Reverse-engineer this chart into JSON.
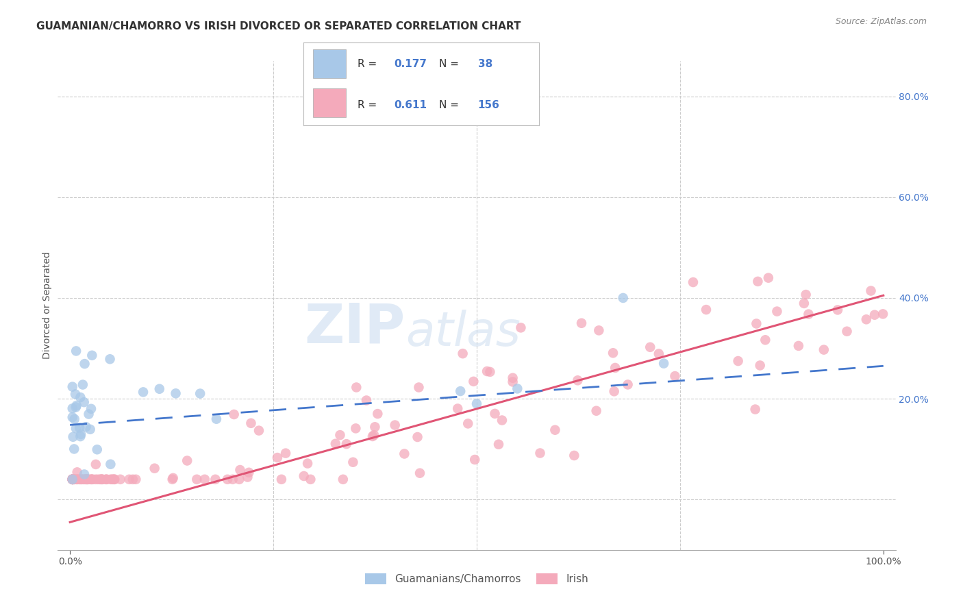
{
  "title": "GUAMANIAN/CHAMORRO VS IRISH DIVORCED OR SEPARATED CORRELATION CHART",
  "source": "Source: ZipAtlas.com",
  "ylabel": "Divorced or Separated",
  "watermark_zip": "ZIP",
  "watermark_atlas": "atlas",
  "legend_label1": "Guamanians/Chamorros",
  "legend_label2": "Irish",
  "blue_scatter_color": "#a8c8e8",
  "pink_scatter_color": "#f4aabb",
  "line_blue_color": "#4477cc",
  "line_pink_color": "#e05575",
  "grid_color": "#cccccc",
  "background": "#ffffff",
  "title_color": "#333333",
  "source_color": "#888888",
  "ylabel_color": "#555555",
  "tick_color_x": "#555555",
  "tick_color_y": "#4477cc",
  "legend_text_color": "#333333",
  "legend_value_color": "#4477cc",
  "blue_trend_x0": 0.0,
  "blue_trend_x1": 1.0,
  "blue_trend_y0": 0.148,
  "blue_trend_y1": 0.265,
  "pink_trend_x0": 0.0,
  "pink_trend_x1": 1.0,
  "pink_trend_y0": -0.045,
  "pink_trend_y1": 0.405,
  "xlim_min": -0.015,
  "xlim_max": 1.015,
  "ylim_min": -0.1,
  "ylim_max": 0.87
}
